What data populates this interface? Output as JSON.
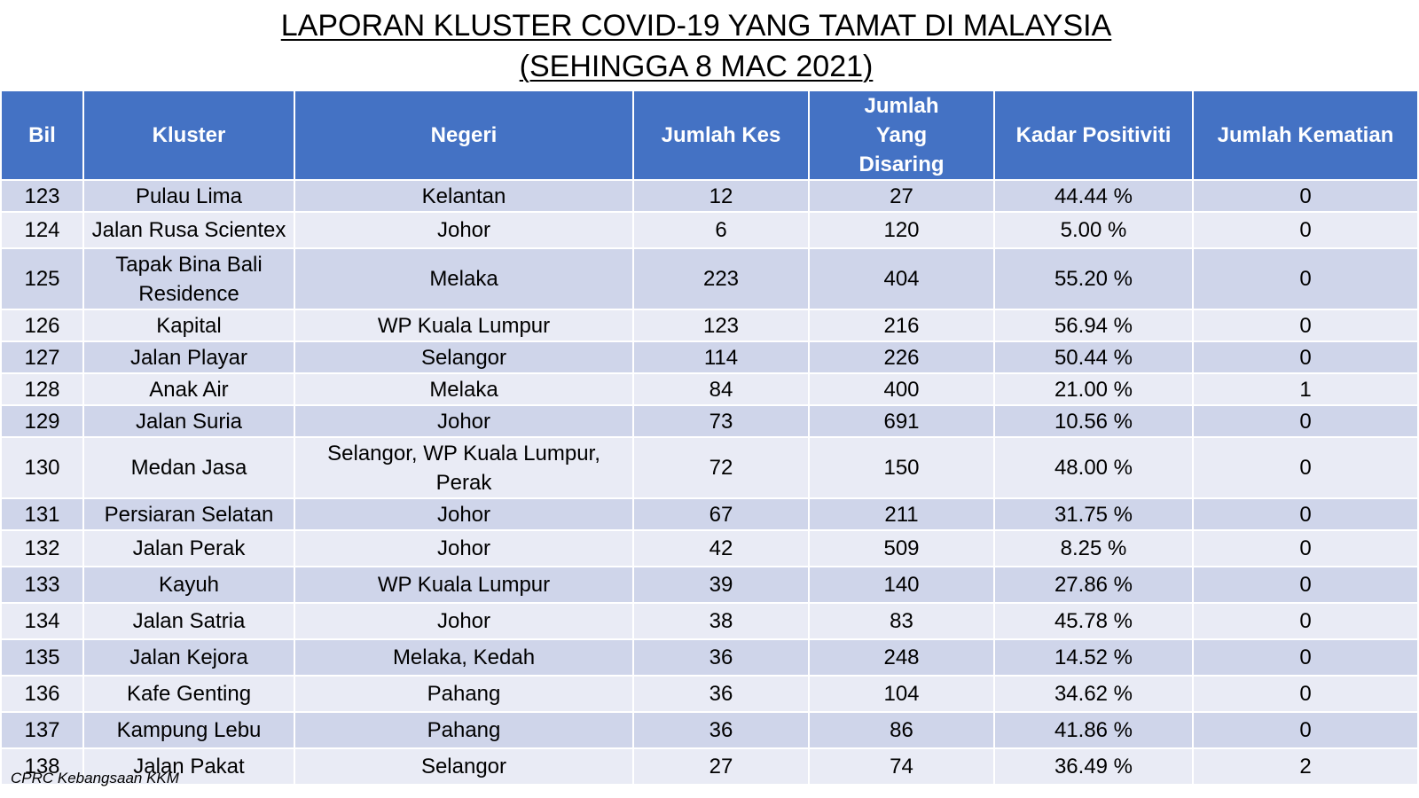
{
  "title": {
    "line1": "LAPORAN KLUSTER COVID-19 YANG TAMAT DI MALAYSIA",
    "line2": "(SEHINGGA  8 MAC 2021)"
  },
  "table": {
    "headers": [
      "Bil",
      "Kluster",
      "Negeri",
      "Jumlah Kes",
      "Jumlah Yang Disaring",
      "Kadar Positiviti",
      "Jumlah Kematian"
    ],
    "header_color": "#4472c4",
    "row_colors": [
      "#cfd5ea",
      "#e9ebf5"
    ],
    "rows": [
      [
        "123",
        "Pulau Lima",
        "Kelantan",
        "12",
        "27",
        "44.44 %",
        "0"
      ],
      [
        "124",
        "Jalan Rusa Scientex",
        "Johor",
        "6",
        "120",
        "5.00 %",
        "0"
      ],
      [
        "125",
        "Tapak Bina Bali Residence",
        "Melaka",
        "223",
        "404",
        "55.20 %",
        "0"
      ],
      [
        "126",
        "Kapital",
        "WP Kuala Lumpur",
        "123",
        "216",
        "56.94 %",
        "0"
      ],
      [
        "127",
        "Jalan Playar",
        "Selangor",
        "114",
        "226",
        "50.44 %",
        "0"
      ],
      [
        "128",
        "Anak Air",
        "Melaka",
        "84",
        "400",
        "21.00 %",
        "1"
      ],
      [
        "129",
        "Jalan Suria",
        "Johor",
        "73",
        "691",
        "10.56 %",
        "0"
      ],
      [
        "130",
        "Medan Jasa",
        "Selangor, WP Kuala Lumpur, Perak",
        "72",
        "150",
        "48.00 %",
        "0"
      ],
      [
        "131",
        "Persiaran Selatan",
        "Johor",
        "67",
        "211",
        "31.75 %",
        "0"
      ],
      [
        "132",
        "Jalan Perak",
        "Johor",
        "42",
        "509",
        "8.25 %",
        "0"
      ],
      [
        "133",
        "Kayuh",
        "WP Kuala Lumpur",
        "39",
        "140",
        "27.86 %",
        "0"
      ],
      [
        "134",
        "Jalan Satria",
        "Johor",
        "38",
        "83",
        "45.78 %",
        "0"
      ],
      [
        "135",
        "Jalan Kejora",
        "Melaka, Kedah",
        "36",
        "248",
        "14.52 %",
        "0"
      ],
      [
        "136",
        "Kafe Genting",
        "Pahang",
        "36",
        "104",
        "34.62 %",
        "0"
      ],
      [
        "137",
        "Kampung Lebu",
        "Pahang",
        "36",
        "86",
        "41.86 %",
        "0"
      ],
      [
        "138",
        "Jalan Pakat",
        "Selangor",
        "27",
        "74",
        "36.49 %",
        "2"
      ]
    ]
  },
  "source": "CPRC Kebangsaan KKM"
}
